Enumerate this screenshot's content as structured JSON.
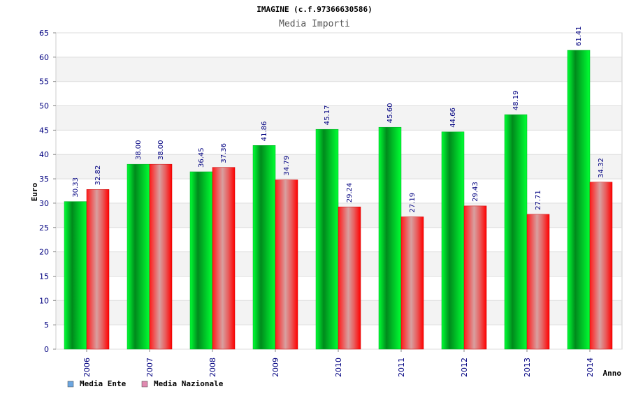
{
  "chart_data": {
    "type": "bar",
    "title": "IMAGINE (c.f.97366630586)",
    "subtitle": "Media Importi",
    "xlabel": "Anno",
    "ylabel": "Euro",
    "ylim": [
      0,
      65
    ],
    "yticks": [
      0,
      5,
      10,
      15,
      20,
      25,
      30,
      35,
      40,
      45,
      50,
      55,
      60,
      65
    ],
    "categories": [
      "2006",
      "2007",
      "2008",
      "2009",
      "2010",
      "2011",
      "2012",
      "2013",
      "2014"
    ],
    "series": [
      {
        "name": "Media Ente",
        "legend_color": "#6ca6e0",
        "values": [
          30.33,
          38.0,
          36.45,
          41.86,
          45.17,
          45.6,
          44.66,
          48.19,
          61.41
        ],
        "labels": [
          "30.33",
          "38.00",
          "36.45",
          "41.86",
          "45.17",
          "45.60",
          "44.66",
          "48.19",
          "61.41"
        ]
      },
      {
        "name": "Media Nazionale",
        "legend_color": "#e08ab0",
        "values": [
          32.82,
          38.0,
          37.36,
          34.79,
          29.24,
          27.19,
          29.43,
          27.71,
          34.32
        ],
        "labels": [
          "32.82",
          "38.00",
          "37.36",
          "34.79",
          "29.24",
          "27.19",
          "29.43",
          "27.71",
          "34.32"
        ]
      }
    ],
    "grid": true,
    "legend_position": "bottom-left"
  }
}
